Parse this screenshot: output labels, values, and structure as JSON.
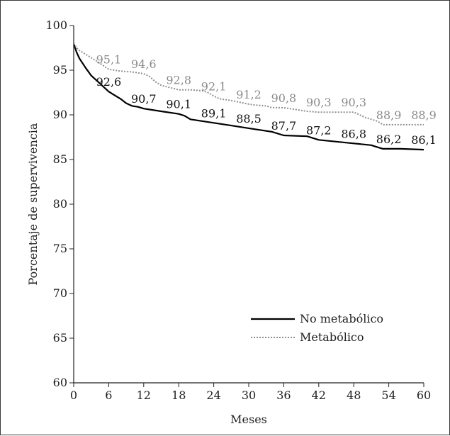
{
  "chart_data": {
    "type": "line",
    "title": "",
    "xlabel": "Meses",
    "ylabel": "Porcentaje de supervivencia",
    "xlim": [
      0,
      60
    ],
    "ylim": [
      60,
      100
    ],
    "x_ticks": [
      0,
      6,
      12,
      18,
      24,
      30,
      36,
      42,
      48,
      54,
      60
    ],
    "y_ticks": [
      60,
      65,
      70,
      75,
      80,
      85,
      90,
      95,
      100
    ],
    "grid": false,
    "legend_position": "lower-right",
    "series": [
      {
        "name": "No metabólico",
        "color": "#000000",
        "style": "solid",
        "x": [
          0,
          0.5,
          1,
          2,
          3,
          4,
          5,
          6,
          7,
          8,
          9,
          10,
          11,
          12,
          15,
          18,
          19,
          20,
          22,
          24,
          27,
          30,
          31,
          33,
          34,
          36,
          40,
          42,
          45,
          48,
          51,
          52,
          53,
          56,
          60
        ],
        "y": [
          98.0,
          97.0,
          96.3,
          95.3,
          94.4,
          93.8,
          93.2,
          92.6,
          92.2,
          91.8,
          91.3,
          91.0,
          90.9,
          90.7,
          90.4,
          90.1,
          89.9,
          89.5,
          89.3,
          89.1,
          88.8,
          88.5,
          88.4,
          88.2,
          88.1,
          87.7,
          87.6,
          87.2,
          87.0,
          86.8,
          86.6,
          86.4,
          86.2,
          86.2,
          86.1
        ],
        "labels": [
          {
            "x": 6,
            "text": "92,6"
          },
          {
            "x": 12,
            "text": "90,7"
          },
          {
            "x": 18,
            "text": "90,1"
          },
          {
            "x": 24,
            "text": "89,1"
          },
          {
            "x": 30,
            "text": "88,5"
          },
          {
            "x": 36,
            "text": "87,7"
          },
          {
            "x": 42,
            "text": "87,2"
          },
          {
            "x": 48,
            "text": "86,8"
          },
          {
            "x": 54,
            "text": "86,2"
          },
          {
            "x": 60,
            "text": "86,1"
          }
        ]
      },
      {
        "name": "Metabólico",
        "color": "#8f8f8f",
        "style": "dotted",
        "x": [
          0,
          0.5,
          1,
          2,
          4,
          6,
          8,
          10,
          12,
          13,
          14,
          15,
          18,
          20,
          22,
          23,
          24,
          25,
          27,
          30,
          31,
          33,
          34,
          36,
          38,
          40,
          42,
          45,
          48,
          50,
          51,
          52,
          53,
          56,
          60
        ],
        "y": [
          98.0,
          97.5,
          97.2,
          96.8,
          96.0,
          95.1,
          94.9,
          94.8,
          94.6,
          94.3,
          93.7,
          93.3,
          92.8,
          92.8,
          92.7,
          92.5,
          92.1,
          91.8,
          91.6,
          91.2,
          91.1,
          91.0,
          90.8,
          90.8,
          90.6,
          90.4,
          90.3,
          90.3,
          90.3,
          89.7,
          89.5,
          89.3,
          88.9,
          88.9,
          88.9
        ],
        "labels": [
          {
            "x": 6,
            "text": "95,1"
          },
          {
            "x": 12,
            "text": "94,6"
          },
          {
            "x": 18,
            "text": "92,8"
          },
          {
            "x": 24,
            "text": "92,1"
          },
          {
            "x": 30,
            "text": "91,2"
          },
          {
            "x": 36,
            "text": "90,8"
          },
          {
            "x": 42,
            "text": "90,3"
          },
          {
            "x": 48,
            "text": "90,3"
          },
          {
            "x": 54,
            "text": "88,9"
          },
          {
            "x": 60,
            "text": "88,9"
          }
        ]
      }
    ]
  }
}
